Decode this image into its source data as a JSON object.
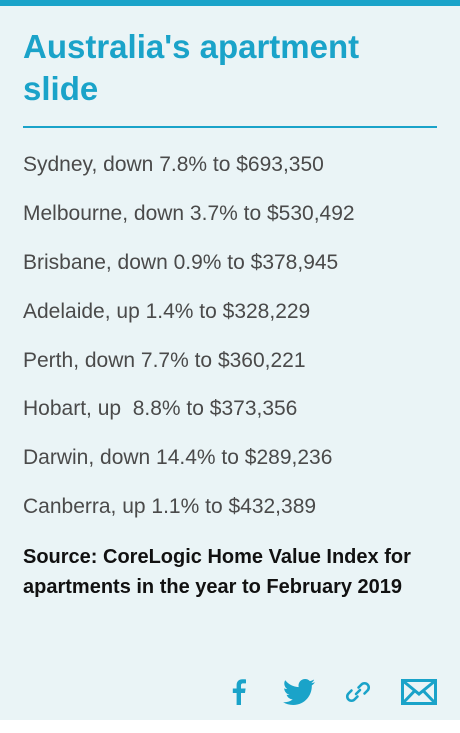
{
  "title": "Australia's apartment slide",
  "cities": [
    {
      "text": "Sydney, down 7.8% to $693,350"
    },
    {
      "text": "Melbourne, down 3.7% to $530,492"
    },
    {
      "text": "Brisbane, down 0.9% to $378,945"
    },
    {
      "text": "Adelaide, up 1.4% to $328,229"
    },
    {
      "text": "Perth, down 7.7% to $360,221"
    },
    {
      "text": "Hobart, up  8.8% to $373,356"
    },
    {
      "text": "Darwin, down 14.4% to $289,236"
    },
    {
      "text": "Canberra, up 1.1% to $432,389"
    }
  ],
  "source": "Source: CoreLogic Home Value Index for apartments in the year to February 2019",
  "share": {
    "icons": [
      "facebook-icon",
      "twitter-icon",
      "link-icon",
      "email-icon"
    ],
    "color": "#1aa3c9"
  },
  "colors": {
    "accent": "#1aa3c9",
    "background": "#eaf4f6",
    "body_text": "#4a4a4a",
    "source_text": "#111111"
  }
}
